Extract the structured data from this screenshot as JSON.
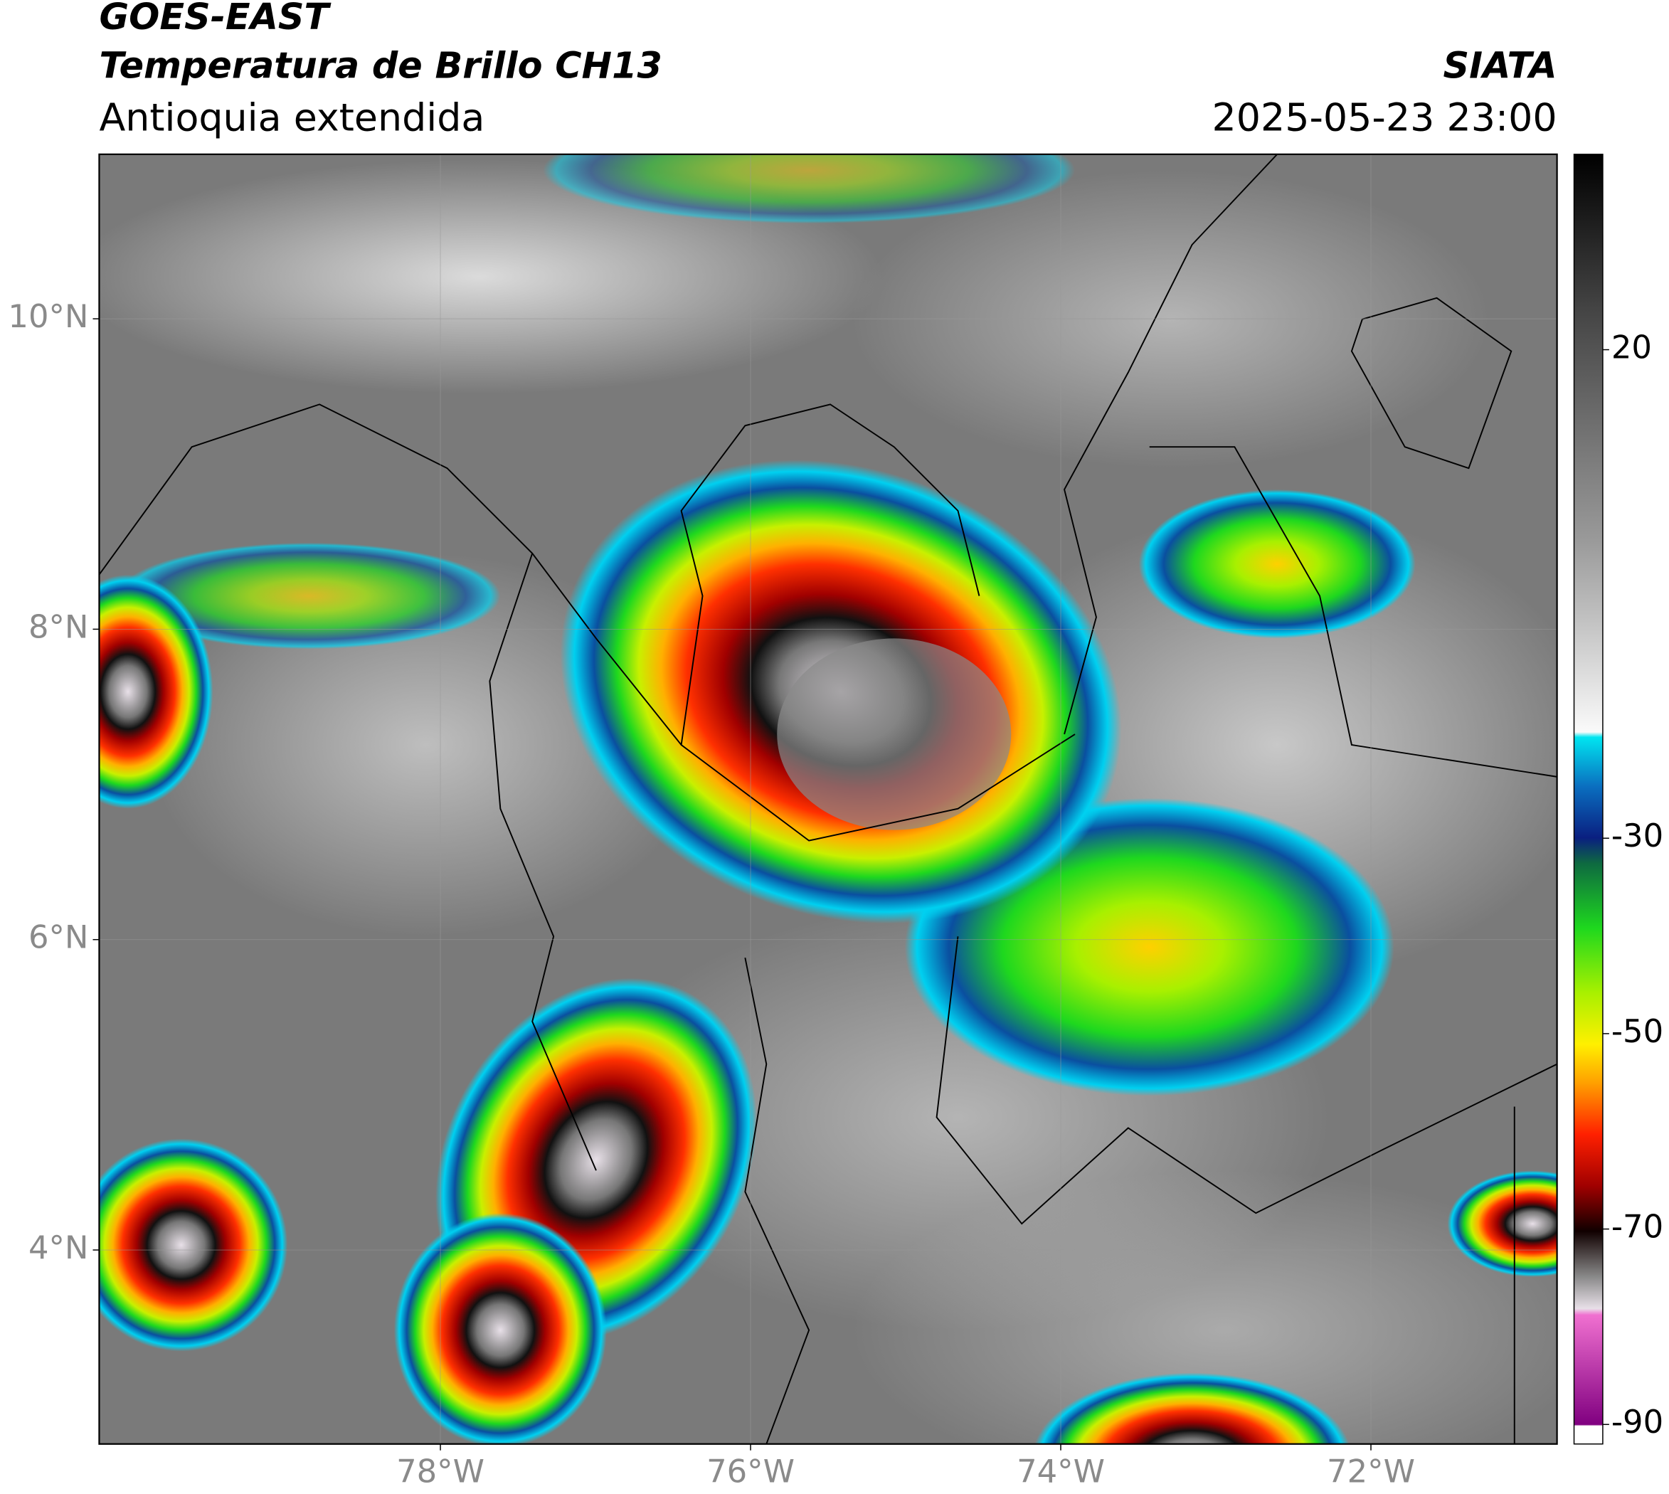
{
  "header": {
    "title_line1": "GOES-EAST",
    "title_line2": "Temperatura de Brillo CH13",
    "region": "Antioquia extendida",
    "source": "SIATA",
    "datetime": "2025-05-23 23:00"
  },
  "map": {
    "xlim": [
      -80.2,
      -70.8
    ],
    "ylim": [
      2.75,
      11.06
    ],
    "lat_ticks": [
      {
        "value": 10,
        "label": "10°N"
      },
      {
        "value": 8,
        "label": "8°N"
      },
      {
        "value": 6,
        "label": "6°N"
      },
      {
        "value": 4,
        "label": "4°N"
      }
    ],
    "lon_ticks": [
      {
        "value": -78,
        "label": "78°W"
      },
      {
        "value": -76,
        "label": "76°W"
      },
      {
        "value": -74,
        "label": "74°W"
      },
      {
        "value": -72,
        "label": "72°W"
      }
    ]
  },
  "colorbar": {
    "clim": [
      -92,
      40
    ],
    "ticks": [
      20,
      -30,
      -50,
      -70,
      -90
    ]
  }
}
